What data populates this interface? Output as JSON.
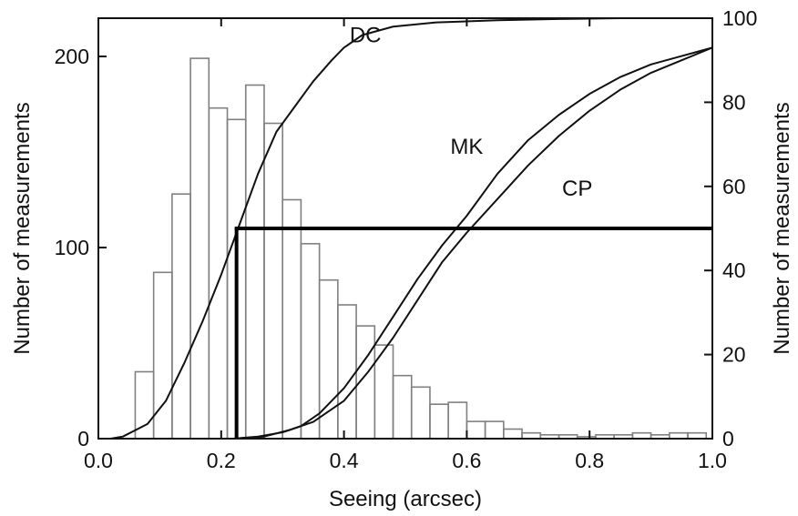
{
  "chart_data": {
    "type": "bar+line",
    "xlabel": "Seeing (arcsec)",
    "ylabel_left": "Number of measurements",
    "ylabel_right": "Number of measurements",
    "xlim": [
      0.0,
      1.0
    ],
    "ylim_left": [
      0,
      220
    ],
    "ylim_right": [
      0,
      100
    ],
    "x_ticks": [
      "0.0",
      "0.2",
      "0.4",
      "0.6",
      "0.8",
      "1.0"
    ],
    "x_tick_values": [
      0.0,
      0.2,
      0.4,
      0.6,
      0.8,
      1.0
    ],
    "y_left_ticks": [
      "0",
      "100",
      "200"
    ],
    "y_left_tick_values": [
      0,
      100,
      200
    ],
    "y_right_ticks": [
      "0",
      "20",
      "40",
      "60",
      "80",
      "100"
    ],
    "y_right_tick_values": [
      0,
      20,
      40,
      60,
      80,
      100
    ],
    "grid": false,
    "histogram": {
      "bin_width": 0.03,
      "bin_starts": [
        0.06,
        0.09,
        0.12,
        0.15,
        0.18,
        0.21,
        0.24,
        0.27,
        0.3,
        0.33,
        0.36,
        0.39,
        0.42,
        0.45,
        0.48,
        0.51,
        0.54,
        0.57,
        0.6,
        0.63,
        0.66,
        0.69,
        0.72,
        0.75,
        0.78,
        0.81,
        0.84,
        0.87,
        0.9,
        0.93,
        0.96
      ],
      "counts": [
        35,
        87,
        128,
        199,
        173,
        167,
        185,
        165,
        125,
        102,
        83,
        70,
        59,
        49,
        33,
        27,
        18,
        19,
        9,
        9,
        5,
        3,
        2,
        2,
        1,
        2,
        2,
        3,
        2,
        3,
        3
      ],
      "color": "#808080"
    },
    "series": [
      {
        "name": "DC",
        "x": [
          0.02,
          0.04,
          0.08,
          0.11,
          0.14,
          0.17,
          0.2,
          0.23,
          0.26,
          0.29,
          0.32,
          0.35,
          0.38,
          0.4,
          0.43,
          0.48,
          0.55,
          0.65,
          0.75,
          0.85,
          1.0
        ],
        "y": [
          0,
          0.5,
          3.5,
          9,
          18,
          28,
          39,
          51,
          63,
          73,
          79,
          85,
          90,
          93,
          96,
          98,
          99,
          99.5,
          99.8,
          100,
          100
        ]
      },
      {
        "name": "MK",
        "x": [
          0.22,
          0.26,
          0.3,
          0.33,
          0.36,
          0.4,
          0.44,
          0.48,
          0.52,
          0.56,
          0.6,
          0.65,
          0.7,
          0.75,
          0.8,
          0.85,
          0.9,
          0.95,
          1.0
        ],
        "y": [
          0,
          0.5,
          1.5,
          3,
          6,
          12,
          20,
          29,
          38,
          46,
          53,
          63,
          71,
          77,
          82,
          86,
          89,
          91,
          93
        ]
      },
      {
        "name": "CP",
        "x": [
          0.22,
          0.27,
          0.31,
          0.35,
          0.4,
          0.44,
          0.48,
          0.52,
          0.56,
          0.6,
          0.65,
          0.7,
          0.75,
          0.8,
          0.85,
          0.9,
          0.95,
          1.0
        ],
        "y": [
          0,
          0.5,
          2,
          4,
          9,
          16,
          24,
          33,
          42,
          49,
          57,
          65,
          72,
          78,
          83,
          87,
          90,
          93
        ]
      }
    ],
    "median_marker": {
      "x": 0.225,
      "y_right": 50
    },
    "curve_label_anchors": [
      {
        "name": "DC",
        "x": 0.435,
        "y_right": 96
      },
      {
        "name": "MK",
        "x": 0.6,
        "y_right": 69.5
      },
      {
        "name": "CP",
        "x": 0.78,
        "y_right": 59.5
      }
    ]
  }
}
